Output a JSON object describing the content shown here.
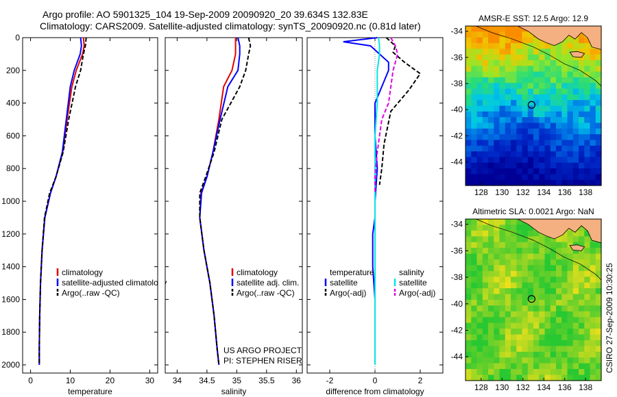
{
  "header": {
    "line1": "Argo profile: AO 5901325_104 19-Sep-2009 20090920_20 39.634S 132.83E",
    "line2": "Climatology: CARS2009. Satellite-adjusted climatology: synTS_20090920.nc (0.81d later)"
  },
  "side_stamp": "CSIRO 27-Sep-2009 10:30:25",
  "colors": {
    "climatology": "#e00000",
    "satellite": "#0000ff",
    "argo": "#000000",
    "sat_salinity": "#00e5e5",
    "argo_salinity_diff": "#e000e0",
    "land": "#f4b080"
  },
  "chart_data": [
    {
      "type": "line",
      "xlabel": "temperature",
      "ylim": [
        0,
        2050
      ],
      "y_inverted": true,
      "xlim": [
        -2,
        32
      ],
      "x_ticks": [
        "0",
        "10",
        "20",
        "30"
      ],
      "y_ticks": [
        "0",
        "200",
        "400",
        "600",
        "800",
        "1000",
        "1200",
        "1400",
        "1600",
        "1800",
        "2000"
      ],
      "legend": [
        "climatology",
        "satellite-adjusted climatology",
        "Argo(..raw -QC)"
      ],
      "series": [
        {
          "name": "climatology",
          "color": "#e00000",
          "dash": "",
          "x": [
            13.3,
            13.5,
            13.1,
            11.5,
            10.4,
            9.2,
            8.1,
            6.4,
            5.0,
            3.6,
            2.9,
            2.5,
            2.3,
            2.2,
            2.2
          ],
          "y": [
            0,
            50,
            100,
            200,
            300,
            500,
            700,
            850,
            950,
            1100,
            1300,
            1500,
            1700,
            1900,
            2000
          ]
        },
        {
          "name": "satellite-adjusted climatology",
          "color": "#0000ff",
          "dash": "",
          "x": [
            12.6,
            12.8,
            12.5,
            11.0,
            10.0,
            9.0,
            8.0,
            6.4,
            5.0,
            3.6,
            2.9,
            2.5,
            2.3,
            2.2,
            2.2
          ],
          "y": [
            0,
            50,
            100,
            200,
            300,
            500,
            700,
            850,
            950,
            1100,
            1300,
            1500,
            1700,
            1900,
            2000
          ]
        },
        {
          "name": "Argo(..raw -QC)",
          "color": "#000000",
          "dash": "6,3",
          "x": [
            14.0,
            13.8,
            13.3,
            12.6,
            11.3,
            9.6,
            8.2,
            6.4,
            4.8,
            3.5,
            2.9,
            2.5,
            2.3,
            2.2,
            2.2
          ],
          "y": [
            0,
            50,
            100,
            200,
            300,
            500,
            700,
            850,
            950,
            1100,
            1300,
            1500,
            1700,
            1900,
            2000
          ]
        }
      ]
    },
    {
      "type": "line",
      "xlabel": "salinity",
      "ylim": [
        0,
        2050
      ],
      "y_inverted": true,
      "xlim": [
        33.8,
        36.1
      ],
      "x_ticks": [
        "34",
        "34.5",
        "35",
        "35.5",
        "36"
      ],
      "legend": [
        "climatology",
        "satellite adj. clim.",
        "Argo(..raw -QC)"
      ],
      "annotation": [
        "US ARGO PROJECT",
        "PI: STEPHEN RISER"
      ],
      "series": [
        {
          "name": "climatology",
          "color": "#e00000",
          "dash": "",
          "x": [
            34.98,
            34.98,
            34.98,
            34.92,
            34.78,
            34.7,
            34.6,
            34.5,
            34.4,
            34.38,
            34.45,
            34.55,
            34.62,
            34.67,
            34.7
          ],
          "y": [
            0,
            50,
            100,
            200,
            300,
            500,
            700,
            850,
            950,
            1100,
            1300,
            1500,
            1700,
            1900,
            2000
          ]
        },
        {
          "name": "satellite adj. clim.",
          "color": "#0000ff",
          "dash": "",
          "x": [
            35.02,
            35.05,
            35.05,
            35.02,
            34.85,
            34.72,
            34.6,
            34.5,
            34.41,
            34.38,
            34.45,
            34.55,
            34.62,
            34.67,
            34.7
          ],
          "y": [
            0,
            50,
            100,
            200,
            300,
            500,
            700,
            850,
            950,
            1100,
            1300,
            1500,
            1700,
            1900,
            2000
          ]
        },
        {
          "name": "Argo(..raw -QC)",
          "color": "#000000",
          "dash": "6,3",
          "x": [
            35.2,
            35.23,
            35.2,
            35.15,
            35.05,
            34.75,
            34.62,
            34.48,
            34.38,
            34.38,
            34.45,
            34.55,
            34.62,
            34.67,
            34.7
          ],
          "y": [
            0,
            50,
            100,
            200,
            300,
            500,
            700,
            850,
            950,
            1100,
            1300,
            1500,
            1700,
            1900,
            2000
          ]
        }
      ]
    },
    {
      "type": "line",
      "xlabel": "difference from climatology",
      "ylim": [
        0,
        2050
      ],
      "y_inverted": true,
      "xlim": [
        -3,
        3
      ],
      "x_ticks": [
        "-2",
        "0",
        "2"
      ],
      "legend_groups": [
        {
          "title": "temperature",
          "items": [
            "satellite",
            "Argo(-adj)"
          ]
        },
        {
          "title": "salinity",
          "items": [
            "satellite",
            "Argo(-adj)"
          ]
        }
      ],
      "series": [
        {
          "name": "satellite",
          "group": "temperature",
          "color": "#0000ff",
          "dash": "",
          "x": [
            0.1,
            -1.4,
            -0.2,
            0.6,
            0.6,
            0.0,
            0.0,
            0.1,
            0.0,
            0.0,
            -0.1,
            -0.1,
            0.0,
            0.0,
            0.0
          ],
          "y": [
            0,
            25,
            50,
            150,
            200,
            400,
            600,
            800,
            1000,
            1100,
            1200,
            1400,
            1600,
            1800,
            2000
          ]
        },
        {
          "name": "Argo(-adj)",
          "group": "temperature",
          "color": "#000000",
          "dash": "6,3",
          "x": [
            0.5,
            0.9,
            0.8,
            1.3,
            2.0,
            1.5,
            0.7,
            0.4,
            0.3,
            0.2
          ],
          "y": [
            0,
            50,
            90,
            150,
            220,
            320,
            450,
            650,
            800,
            900
          ]
        },
        {
          "name": "satellite",
          "group": "salinity",
          "color": "#00e5e5",
          "dash": "",
          "x": [
            0.15,
            0.2,
            0.2,
            0.1,
            0.1,
            0.0,
            0.0,
            0.0,
            0.0,
            0.0,
            0.0
          ],
          "y": [
            0,
            50,
            100,
            200,
            400,
            600,
            800,
            1000,
            1400,
            1800,
            2000
          ]
        },
        {
          "name": "Argo(-adj)",
          "group": "salinity",
          "color": "#e000e0",
          "dash": "6,3",
          "x": [
            0.7,
            0.9,
            1.0,
            0.8,
            0.7,
            0.6,
            0.3,
            0.1,
            0.0,
            0.0
          ],
          "y": [
            0,
            50,
            100,
            200,
            300,
            400,
            500,
            700,
            850,
            950
          ]
        }
      ]
    },
    {
      "type": "heatmap",
      "title": "AMSR-E SST: 12.5 Argo: 12.9",
      "x_ticks": [
        "128",
        "130",
        "132",
        "134",
        "136",
        "138"
      ],
      "y_ticks": [
        "-34",
        "-36",
        "-38",
        "-40",
        "-42",
        "-44"
      ],
      "xlim": [
        126.5,
        139.5
      ],
      "ylim": [
        -45.8,
        -33.6
      ],
      "marker": [
        132.83,
        -39.634
      ]
    },
    {
      "type": "heatmap",
      "title": "Altimetric SLA: 0.0021 Argo: NaN",
      "x_ticks": [
        "128",
        "130",
        "132",
        "134",
        "136",
        "138"
      ],
      "y_ticks": [
        "-34",
        "-36",
        "-38",
        "-40",
        "-42",
        "-44"
      ],
      "xlim": [
        126.5,
        139.5
      ],
      "ylim": [
        -45.8,
        -33.6
      ],
      "marker": [
        132.83,
        -39.634
      ]
    }
  ]
}
